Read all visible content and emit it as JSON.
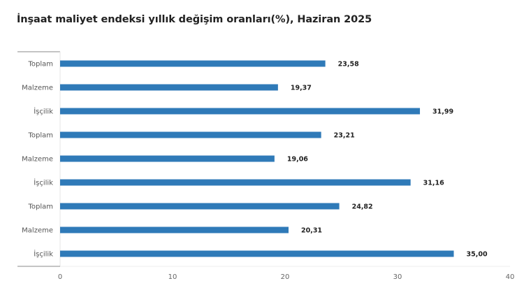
{
  "chart_data": {
    "type": "bar",
    "orientation": "horizontal",
    "title": "İnşaat maliyet endeksi yıllık değişim oranları(%), Haziran 2025",
    "categories": [
      "Toplam",
      "Malzeme",
      "İşçilik",
      "Toplam",
      "Malzeme",
      "İşçilik",
      "Toplam",
      "Malzeme",
      "İşçilik"
    ],
    "values": [
      23.58,
      19.37,
      31.99,
      23.21,
      19.06,
      31.16,
      24.82,
      20.31,
      35.0
    ],
    "value_labels": [
      "23,58",
      "19,37",
      "31,99",
      "23,21",
      "19,06",
      "31,16",
      "24,82",
      "20,31",
      "35,00"
    ],
    "xlim": [
      0,
      40
    ],
    "xticks": [
      "0",
      "10",
      "20",
      "30",
      "40"
    ],
    "xlabel": "",
    "ylabel": "",
    "grid": false,
    "bar_color": "#2f7ab8"
  }
}
